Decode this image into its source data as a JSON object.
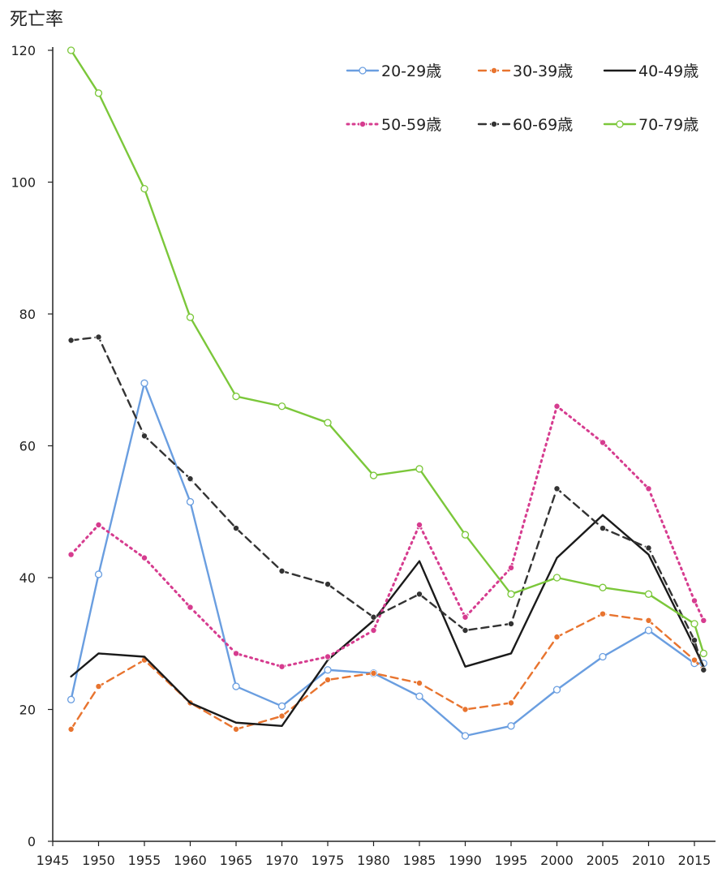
{
  "chart_data": {
    "type": "line",
    "ylabel": "死亡率",
    "xlabel": "",
    "title": "",
    "xlim": [
      1945,
      2017
    ],
    "ylim": [
      0,
      120
    ],
    "xticks": [
      1945,
      1950,
      1955,
      1960,
      1965,
      1970,
      1975,
      1980,
      1985,
      1990,
      1995,
      2000,
      2005,
      2010,
      2015
    ],
    "yticks": [
      0,
      20,
      40,
      60,
      80,
      100,
      120
    ],
    "x": [
      1947,
      1950,
      1955,
      1960,
      1965,
      1970,
      1975,
      1980,
      1985,
      1990,
      1995,
      2000,
      2005,
      2010,
      2015,
      2016
    ],
    "legend_position": "top-right",
    "grid": false,
    "series": [
      {
        "name": "20-29歳",
        "color": "#6a9ee0",
        "style": "solid",
        "marker": "open-circle",
        "values": [
          21.5,
          40.5,
          69.5,
          51.5,
          23.5,
          20.5,
          26,
          25.5,
          22,
          16,
          17.5,
          23,
          28,
          32,
          27,
          27
        ]
      },
      {
        "name": "30-39歳",
        "color": "#e8742f",
        "style": "dashed",
        "marker": "dot",
        "values": [
          17,
          23.5,
          27.5,
          21,
          17,
          19,
          24.5,
          25.5,
          24,
          20,
          21,
          31,
          34.5,
          33.5,
          27.5,
          26
        ]
      },
      {
        "name": "40-49歳",
        "color": "#1a1a1a",
        "style": "solid",
        "marker": "none",
        "values": [
          25,
          28.5,
          28,
          21,
          18,
          17.5,
          27.5,
          33.5,
          42.5,
          26.5,
          28.5,
          43,
          49.5,
          43.5,
          29.5,
          26.5
        ]
      },
      {
        "name": "50-59歳",
        "color": "#d63c8f",
        "style": "dotted",
        "marker": "dot",
        "values": [
          43.5,
          48,
          43,
          35.5,
          28.5,
          26.5,
          28,
          32,
          48,
          34,
          41.5,
          66,
          60.5,
          53.5,
          36.5,
          33.5
        ]
      },
      {
        "name": "60-69歳",
        "color": "#333333",
        "style": "dashed",
        "marker": "dot",
        "values": [
          76,
          76.5,
          61.5,
          55,
          47.5,
          41,
          39,
          34,
          37.5,
          32,
          33,
          53.5,
          47.5,
          44.5,
          30.5,
          26
        ]
      },
      {
        "name": "70-79歳",
        "color": "#7bc73a",
        "style": "solid",
        "marker": "open-circle",
        "values": [
          120,
          113.5,
          99,
          79.5,
          67.5,
          66,
          63.5,
          55.5,
          56.5,
          46.5,
          37.5,
          40,
          38.5,
          37.5,
          33,
          28.5
        ]
      }
    ]
  }
}
